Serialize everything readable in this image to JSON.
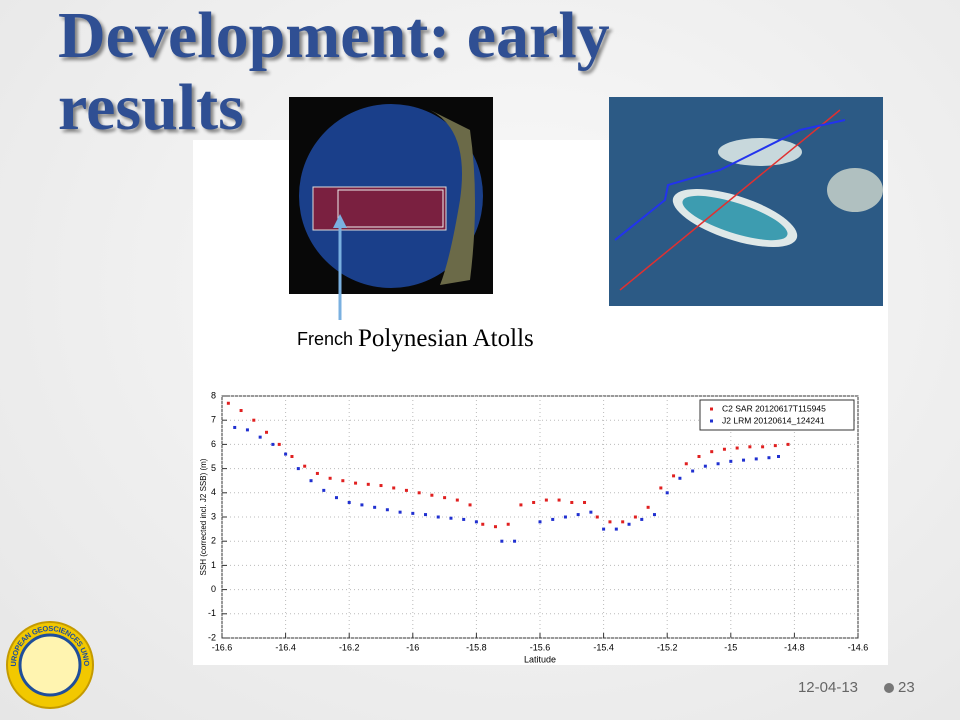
{
  "title": "Development: early results",
  "image_caption": {
    "part1": "French",
    "part2": "Polynesian Atolls"
  },
  "logo": {
    "text": "EUROPEAN GEOSCIENCES UNION"
  },
  "footer": {
    "date": "12-04-13",
    "page": "23"
  },
  "chart_data": {
    "type": "scatter",
    "xlabel": "Latitude",
    "ylabel": "SSH (corrected incl. J2 SSB) (m)",
    "xlim": [
      -16.6,
      -14.6
    ],
    "xticks": [
      -16.6,
      -16.4,
      -16.2,
      -16,
      -15.8,
      -15.6,
      -15.4,
      -15.2,
      -15,
      -14.8,
      -14.6
    ],
    "ylim": [
      -2,
      8
    ],
    "yticks": [
      -2,
      -1,
      0,
      1,
      2,
      3,
      4,
      5,
      6,
      7,
      8
    ],
    "grid": true,
    "legend": "upper right",
    "series": [
      {
        "name": "C2 SAR 20120617T115945",
        "color": "#e02020",
        "x": [
          -16.58,
          -16.54,
          -16.5,
          -16.46,
          -16.42,
          -16.38,
          -16.34,
          -16.3,
          -16.26,
          -16.22,
          -16.18,
          -16.14,
          -16.1,
          -16.06,
          -16.02,
          -15.98,
          -15.94,
          -15.9,
          -15.86,
          -15.82,
          -15.78,
          -15.74,
          -15.7,
          -15.66,
          -15.62,
          -15.58,
          -15.54,
          -15.5,
          -15.46,
          -15.42,
          -15.38,
          -15.34,
          -15.3,
          -15.26,
          -15.22,
          -15.18,
          -15.14,
          -15.1,
          -15.06,
          -15.02,
          -14.98,
          -14.94,
          -14.9,
          -14.86,
          -14.82
        ],
        "values": [
          7.7,
          7.4,
          7.0,
          6.5,
          6.0,
          5.5,
          5.1,
          4.8,
          4.6,
          4.5,
          4.4,
          4.35,
          4.3,
          4.2,
          4.1,
          4.0,
          3.9,
          3.8,
          3.7,
          3.5,
          2.7,
          2.6,
          2.7,
          3.5,
          3.6,
          3.7,
          3.7,
          3.6,
          3.6,
          3.0,
          2.8,
          2.8,
          3.0,
          3.4,
          4.2,
          4.7,
          5.2,
          5.5,
          5.7,
          5.8,
          5.85,
          5.9,
          5.9,
          5.95,
          6.0
        ]
      },
      {
        "name": "J2 LRM 20120614_124241",
        "color": "#2030d0",
        "x": [
          -16.56,
          -16.52,
          -16.48,
          -16.44,
          -16.4,
          -16.36,
          -16.32,
          -16.28,
          -16.24,
          -16.2,
          -16.16,
          -16.12,
          -16.08,
          -16.04,
          -16.0,
          -15.96,
          -15.92,
          -15.88,
          -15.84,
          -15.8,
          -15.72,
          -15.68,
          -15.6,
          -15.56,
          -15.52,
          -15.48,
          -15.44,
          -15.4,
          -15.36,
          -15.32,
          -15.28,
          -15.24,
          -15.2,
          -15.16,
          -15.12,
          -15.08,
          -15.04,
          -15.0,
          -14.96,
          -14.92,
          -14.88,
          -14.85
        ],
        "values": [
          6.7,
          6.6,
          6.3,
          6.0,
          5.6,
          5.0,
          4.5,
          4.1,
          3.8,
          3.6,
          3.5,
          3.4,
          3.3,
          3.2,
          3.15,
          3.1,
          3.0,
          2.95,
          2.9,
          2.8,
          2.0,
          2.0,
          2.8,
          2.9,
          3.0,
          3.1,
          3.2,
          2.5,
          2.5,
          2.7,
          2.9,
          3.1,
          4.0,
          4.6,
          4.9,
          5.1,
          5.2,
          5.3,
          5.35,
          5.4,
          5.45,
          5.5
        ]
      }
    ]
  }
}
